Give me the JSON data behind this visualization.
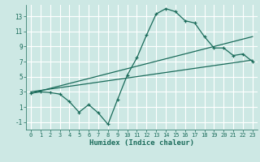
{
  "xlabel": "Humidex (Indice chaleur)",
  "bg_color": "#cde8e4",
  "line_color": "#1a6b5a",
  "grid_color": "#ffffff",
  "xlim": [
    -0.5,
    23.5
  ],
  "ylim": [
    -2.0,
    14.5
  ],
  "xticks": [
    0,
    1,
    2,
    3,
    4,
    5,
    6,
    7,
    8,
    9,
    10,
    11,
    12,
    13,
    14,
    15,
    16,
    17,
    18,
    19,
    20,
    21,
    22,
    23
  ],
  "yticks": [
    -1,
    1,
    3,
    5,
    7,
    9,
    11,
    13
  ],
  "curve1_x": [
    0,
    1,
    2,
    3,
    4,
    5,
    6,
    7,
    8,
    9,
    10,
    11,
    12,
    13,
    14,
    15,
    16,
    17,
    18,
    19,
    20,
    21,
    22,
    23
  ],
  "curve1_y": [
    2.8,
    3.0,
    2.9,
    2.7,
    1.7,
    0.3,
    1.3,
    0.2,
    -1.3,
    2.0,
    5.2,
    7.5,
    10.5,
    13.3,
    14.0,
    13.6,
    12.4,
    12.1,
    10.3,
    8.8,
    8.8,
    7.8,
    8.0,
    7.0
  ],
  "line2_x": [
    0,
    23
  ],
  "line2_y": [
    2.8,
    10.3
  ],
  "line3_x": [
    0,
    23
  ],
  "line3_y": [
    3.0,
    7.2
  ]
}
